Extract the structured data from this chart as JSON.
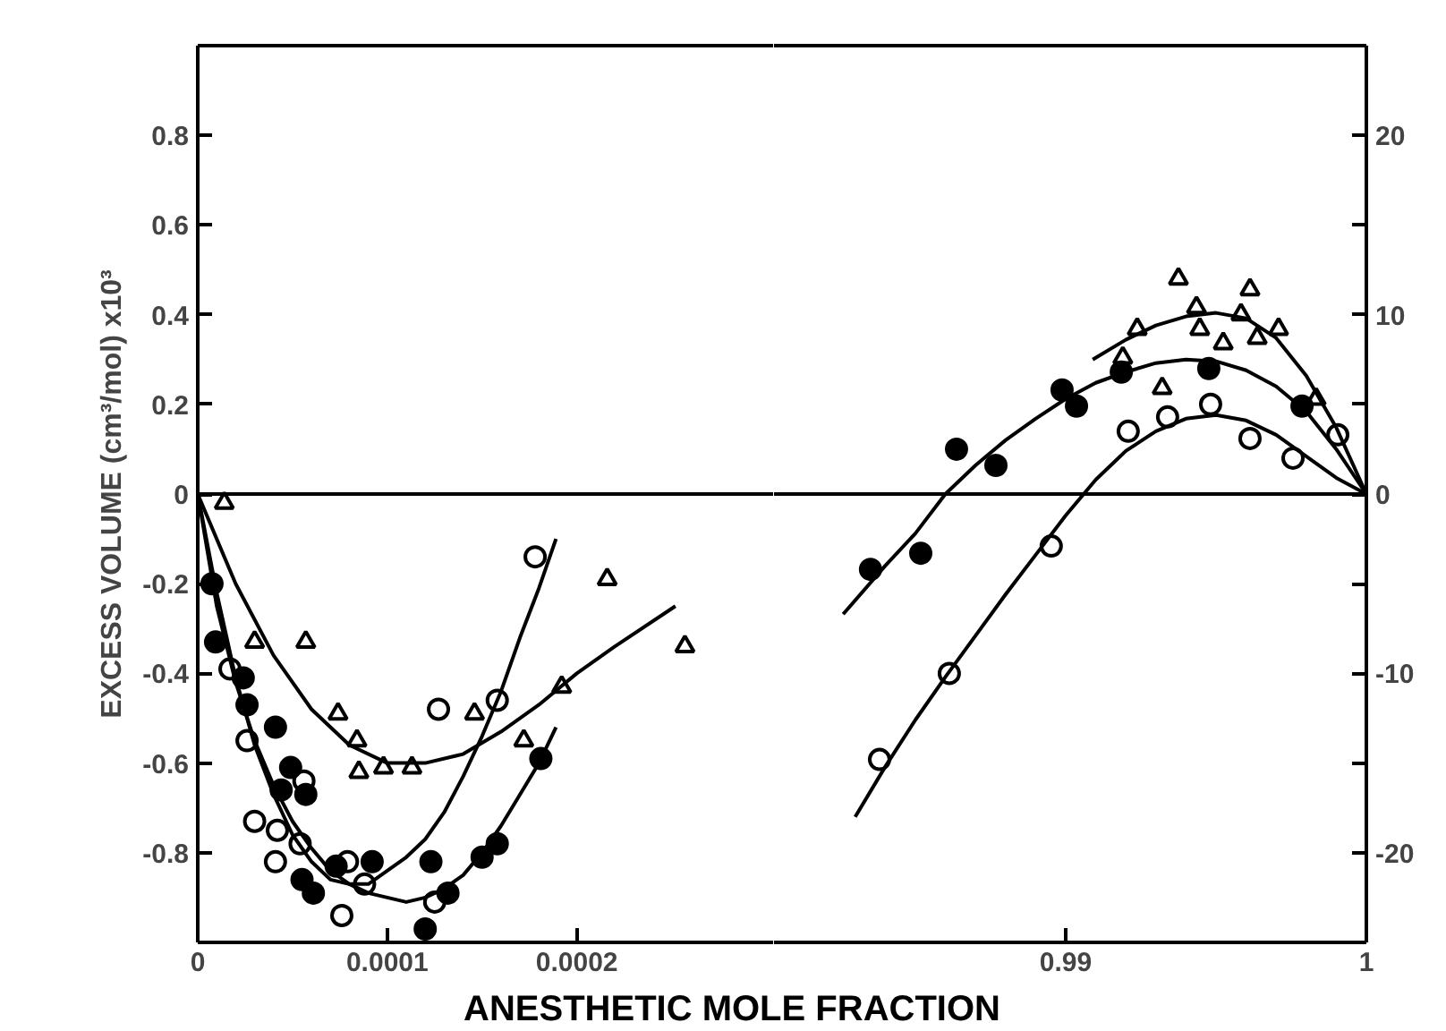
{
  "chart_data": [
    {
      "type": "scatter",
      "ylabel": "EXCESS VOLUME (cm³/mol) x10³",
      "xlabel": "ANESTHETIC MOLE FRACTION",
      "xlim": [
        0,
        0.000304
      ],
      "ylim": [
        -1.0,
        1.0
      ],
      "xticks": [
        0,
        0.0001,
        0.0002
      ],
      "yticks": [
        -0.8,
        -0.6,
        -0.4,
        -0.2,
        0,
        0.2,
        0.4,
        0.6,
        0.8
      ],
      "grid": false,
      "ref_lines": [
        {
          "axis": "y",
          "value": 0,
          "color": "#000000"
        }
      ],
      "series": [
        {
          "marker": "triangle",
          "color": "#ffffff",
          "x": [
            1.4e-05,
            3e-05,
            5.7e-05,
            7.4e-05,
            8.4e-05,
            8.5e-05,
            9.8e-05,
            0.000113,
            0.000146,
            0.000172,
            0.000192,
            0.000216,
            0.000257
          ],
          "values": [
            -0.02,
            -0.33,
            -0.33,
            -0.49,
            -0.55,
            -0.62,
            -0.61,
            -0.61,
            -0.49,
            -0.55,
            -0.43,
            -0.19,
            -0.34
          ]
        },
        {
          "marker": "circle",
          "color": "#ffffff",
          "x": [
            1.7e-05,
            2.6e-05,
            3e-05,
            4.2e-05,
            4.1e-05,
            5.4e-05,
            5.6e-05,
            7.6e-05,
            7.9e-05,
            8.8e-05,
            0.000127,
            0.000125,
            0.000158,
            0.000178
          ],
          "values": [
            -0.39,
            -0.55,
            -0.73,
            -0.75,
            -0.82,
            -0.78,
            -0.64,
            -0.94,
            -0.82,
            -0.87,
            -0.48,
            -0.91,
            -0.46,
            -0.14
          ]
        },
        {
          "marker": "circle",
          "color": "#000000",
          "x": [
            7.5e-06,
            9.4e-06,
            2.4e-05,
            2.6e-05,
            4.1e-05,
            4.9e-05,
            4.4e-05,
            5.7e-05,
            5.5e-05,
            6.1e-05,
            7.3e-05,
            9.2e-05,
            0.000123,
            0.00012,
            0.000132,
            0.00015,
            0.000158,
            0.000181
          ],
          "values": [
            -0.2,
            -0.33,
            -0.41,
            -0.47,
            -0.52,
            -0.61,
            -0.66,
            -0.67,
            -0.86,
            -0.89,
            -0.83,
            -0.82,
            -0.82,
            -0.97,
            -0.89,
            -0.81,
            -0.78,
            -0.59
          ]
        },
        {
          "type": "line",
          "marker": "none",
          "color": "#000000",
          "x": [
            0,
            2e-05,
            4e-05,
            6e-05,
            8e-05,
            0.0001,
            0.00012,
            0.00014,
            0.00016,
            0.00018,
            0.0002,
            0.00022,
            0.000252
          ],
          "values": [
            0,
            -0.2,
            -0.36,
            -0.48,
            -0.56,
            -0.6,
            -0.6,
            -0.58,
            -0.53,
            -0.47,
            -0.4,
            -0.34,
            -0.25
          ]
        },
        {
          "type": "line",
          "marker": "none",
          "color": "#000000",
          "x": [
            0,
            1e-05,
            2e-05,
            3e-05,
            4e-05,
            5e-05,
            6e-05,
            7e-05,
            8e-05,
            9e-05,
            0.0001,
            0.00011,
            0.00012,
            0.00013,
            0.00014,
            0.00015,
            0.00016,
            0.00017,
            0.00018,
            0.000189
          ],
          "values": [
            0,
            -0.22,
            -0.41,
            -0.56,
            -0.67,
            -0.76,
            -0.82,
            -0.86,
            -0.87,
            -0.87,
            -0.84,
            -0.81,
            -0.77,
            -0.71,
            -0.63,
            -0.54,
            -0.44,
            -0.32,
            -0.21,
            -0.1
          ]
        },
        {
          "type": "line",
          "marker": "none",
          "color": "#000000",
          "x": [
            0,
            1e-05,
            2e-05,
            3e-05,
            4e-05,
            5e-05,
            6e-05,
            7e-05,
            8e-05,
            9e-05,
            0.0001,
            0.00011,
            0.00012,
            0.00013,
            0.00014,
            0.00015,
            0.00016,
            0.00017,
            0.00018,
            0.000189
          ],
          "values": [
            0,
            -0.25,
            -0.42,
            -0.55,
            -0.65,
            -0.73,
            -0.79,
            -0.84,
            -0.87,
            -0.89,
            -0.9,
            -0.91,
            -0.9,
            -0.88,
            -0.85,
            -0.8,
            -0.74,
            -0.67,
            -0.6,
            -0.52
          ]
        }
      ]
    },
    {
      "type": "scatter",
      "xlim": [
        0.9803,
        1.0
      ],
      "y2lim": [
        -25,
        25
      ],
      "xticks": [
        0.99,
        1
      ],
      "y2ticks": [
        -20,
        {
          "value": -15,
          "label": null
        },
        -10,
        {
          "value": -5,
          "label": null
        },
        0,
        {
          "value": 5,
          "label": null
        },
        10,
        {
          "value": 15,
          "label": null
        },
        20
      ],
      "grid": false,
      "ref_lines": [
        {
          "axis": "y2",
          "value": 0,
          "color": "#000000"
        }
      ],
      "series": [
        {
          "axis": "y2",
          "marker": "triangle",
          "color": "#ffffff",
          "x": [
            0.99375,
            0.99613,
            0.99238,
            0.99435,
            0.99446,
            0.99583,
            0.99708,
            0.99637,
            0.99524,
            0.9919,
            0.99321,
            0.99833
          ],
          "values": [
            12.0,
            11.4,
            9.2,
            10.4,
            9.2,
            10.0,
            9.2,
            8.7,
            8.4,
            7.6,
            5.9,
            5.3
          ]
        },
        {
          "axis": "y2",
          "marker": "circle",
          "color": "#ffffff",
          "x": [
            0.98381,
            0.98613,
            0.98952,
            0.99208,
            0.99339,
            0.99482,
            0.99613,
            0.99756,
            0.99905
          ],
          "values": [
            -14.8,
            -10.0,
            -2.9,
            3.5,
            4.3,
            5.0,
            3.1,
            2.0,
            3.3
          ]
        },
        {
          "axis": "y2",
          "marker": "circle",
          "color": "#000000",
          "x": [
            0.98351,
            0.98518,
            0.98637,
            0.98768,
            0.98988,
            0.99036,
            0.99185,
            0.99476,
            0.99786
          ],
          "values": [
            -4.2,
            -3.3,
            2.5,
            1.6,
            5.8,
            4.9,
            6.8,
            7.0,
            4.9
          ]
        },
        {
          "type": "line",
          "axis": "y2",
          "marker": "none",
          "color": "#000000",
          "x": [
            0.9909,
            0.992,
            0.993,
            0.994,
            0.995,
            0.996,
            0.997,
            0.998,
            0.999,
            1.0
          ],
          "values": [
            7.5,
            8.6,
            9.4,
            9.9,
            10.1,
            9.8,
            8.7,
            6.6,
            3.7,
            0
          ]
        },
        {
          "type": "line",
          "axis": "y2",
          "marker": "none",
          "color": "#000000",
          "x": [
            0.9826,
            0.984,
            0.985,
            0.986,
            0.987,
            0.988,
            0.989,
            0.99,
            0.991,
            0.992,
            0.993,
            0.994,
            0.995,
            0.996,
            0.997,
            0.998,
            0.999,
            1.0
          ],
          "values": [
            -6.7,
            -4.0,
            -2.2,
            0,
            1.6,
            3.0,
            4.2,
            5.3,
            6.2,
            6.8,
            7.3,
            7.5,
            7.4,
            6.9,
            6.0,
            4.6,
            2.5,
            0
          ]
        },
        {
          "type": "line",
          "axis": "y2",
          "marker": "none",
          "color": "#000000",
          "x": [
            0.983,
            0.984,
            0.985,
            0.986,
            0.987,
            0.988,
            0.989,
            0.99,
            0.991,
            0.992,
            0.993,
            0.994,
            0.995,
            0.996,
            0.997,
            0.998,
            0.999,
            1.0
          ],
          "values": [
            -18,
            -15.2,
            -12.6,
            -10.2,
            -7.9,
            -5.6,
            -3.4,
            -1.2,
            0.8,
            2.4,
            3.5,
            4.2,
            4.4,
            4.1,
            3.3,
            2.1,
            0.9,
            0
          ]
        }
      ]
    }
  ]
}
